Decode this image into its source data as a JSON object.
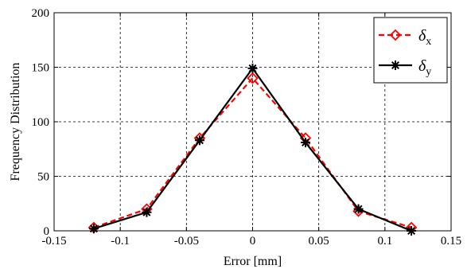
{
  "chart_data": {
    "type": "line",
    "title": "",
    "xlabel": "Error [mm]",
    "ylabel": "Frequency Distribution",
    "xlim": [
      -0.15,
      0.15
    ],
    "ylim": [
      0,
      200
    ],
    "xticks": [
      -0.15,
      -0.1,
      -0.05,
      0,
      0.05,
      0.1,
      0.15
    ],
    "yticks": [
      0,
      50,
      100,
      150,
      200
    ],
    "xtick_labels": [
      "-0.15",
      "-0.1",
      "-0.05",
      "0",
      "0.05",
      "0.1",
      "0.15"
    ],
    "ytick_labels": [
      "0",
      "50",
      "100",
      "150",
      "200"
    ],
    "grid": true,
    "legend_position": "top-right",
    "series": [
      {
        "name": "δx",
        "symbol": "δ",
        "subscript": "x",
        "color": "#ff0000",
        "line_style": "dashed",
        "marker": "diamond",
        "x": [
          -0.12,
          -0.08,
          -0.04,
          0,
          0.04,
          0.08,
          0.12
        ],
        "y": [
          3,
          20,
          85,
          140,
          85,
          18,
          3
        ]
      },
      {
        "name": "δy",
        "symbol": "δ",
        "subscript": "y",
        "color": "#000000",
        "line_style": "solid",
        "marker": "asterisk",
        "x": [
          -0.12,
          -0.08,
          -0.04,
          0,
          0.04,
          0.08,
          0.12
        ],
        "y": [
          2,
          17,
          83,
          149,
          81,
          20,
          0
        ]
      }
    ]
  }
}
